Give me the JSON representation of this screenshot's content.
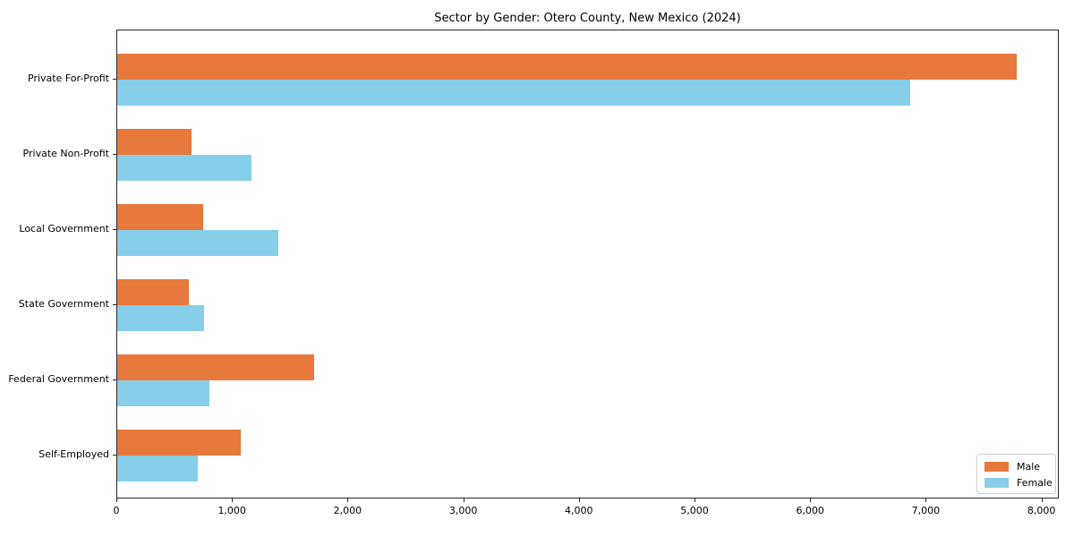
{
  "chart_data": {
    "type": "bar",
    "orientation": "horizontal",
    "title": "Sector by Gender: Otero County, New Mexico (2024)",
    "categories": [
      "Private For-Profit",
      "Private Non-Profit",
      "Local Government",
      "State Government",
      "Federal Government",
      "Self-Employed"
    ],
    "series": [
      {
        "name": "Male",
        "color": "#e8793c",
        "values": [
          7780,
          640,
          740,
          620,
          1700,
          1070
        ]
      },
      {
        "name": "Female",
        "color": "#87ceeb",
        "values": [
          6860,
          1160,
          1390,
          750,
          800,
          700
        ]
      }
    ],
    "xlim": [
      0,
      8150
    ],
    "xticks": [
      0,
      1000,
      2000,
      3000,
      4000,
      5000,
      6000,
      7000,
      8000
    ],
    "xtick_labels": [
      "0",
      "1,000",
      "2,000",
      "3,000",
      "4,000",
      "5,000",
      "6,000",
      "7,000",
      "8,000"
    ],
    "xlabel": "",
    "ylabel": "",
    "grid": false,
    "legend_position": "lower right"
  }
}
